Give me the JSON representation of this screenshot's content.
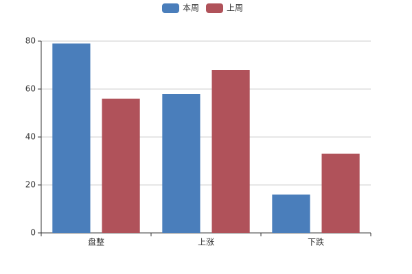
{
  "chart_data": {
    "type": "bar",
    "categories": [
      "盘整",
      "上涨",
      "下跌"
    ],
    "series": [
      {
        "name": "本周",
        "color": "#4a7ebb",
        "values": [
          79,
          58,
          16
        ]
      },
      {
        "name": "上周",
        "color": "#b0525a",
        "values": [
          56,
          68,
          33
        ]
      }
    ],
    "ylim": [
      0,
      80
    ],
    "yticks": [
      0,
      20,
      40,
      60,
      80
    ],
    "grid": true,
    "legend": "top"
  }
}
